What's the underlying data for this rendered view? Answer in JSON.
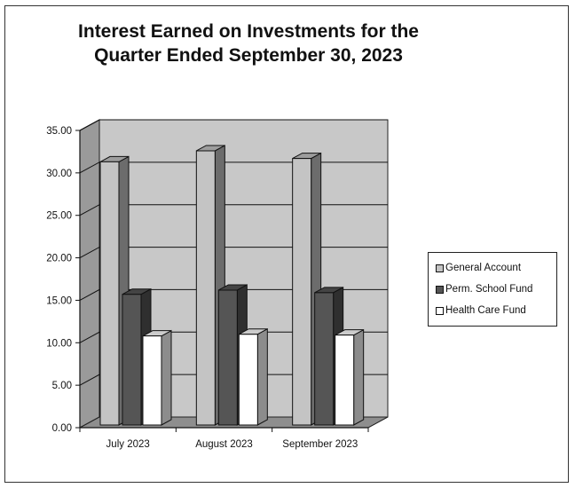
{
  "chart_data": {
    "type": "bar",
    "title": [
      "Interest Earned on Investments for the",
      "Quarter Ended September 30, 2023"
    ],
    "categories": [
      "July 2023",
      "August 2023",
      "September 2023"
    ],
    "series": [
      {
        "name": "General Account",
        "values": [
          31.3,
          32.6,
          31.7
        ],
        "color": "#c4c4c4"
      },
      {
        "name": "Perm. School Fund",
        "values": [
          15.7,
          16.2,
          15.9
        ],
        "color": "#555555"
      },
      {
        "name": "Health Care Fund",
        "values": [
          10.8,
          11.0,
          10.9
        ],
        "color": "#ffffff"
      }
    ],
    "ylim": [
      0,
      35
    ],
    "yticks": [
      "0.00",
      "5.00",
      "10.00",
      "15.00",
      "20.00",
      "25.00",
      "30.00",
      "35.00"
    ],
    "grid": true,
    "legend_position": "right",
    "style": "3d-bar",
    "wall_color": "#c8c8c8"
  }
}
